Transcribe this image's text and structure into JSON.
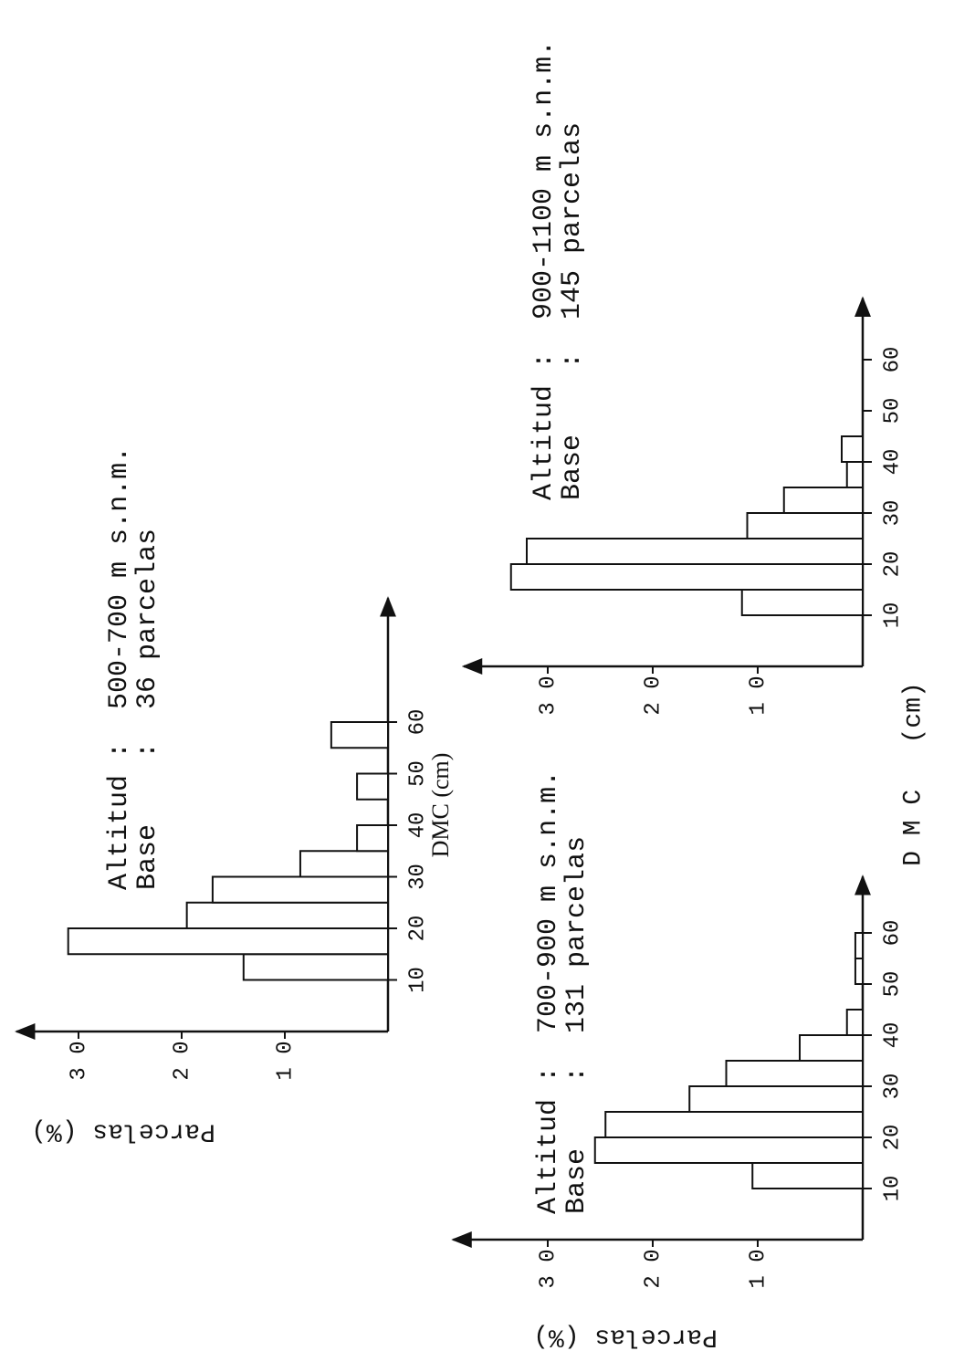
{
  "chart_data": [
    {
      "type": "histogram",
      "annotations": [
        "Altitud :  500-700 m s.n.m.",
        "Base    :  36 parcelas"
      ],
      "ylabel": "Parcelas (%)",
      "xlabel": "DMC (cm)",
      "bins": [
        10,
        15,
        20,
        25,
        30,
        35,
        40,
        45,
        50,
        55,
        60
      ],
      "values": [
        14,
        31,
        19.5,
        17,
        8.5,
        3,
        0,
        3,
        0,
        5.5
      ],
      "xlim": [
        0,
        84
      ],
      "xticks": [
        10,
        20,
        30,
        40,
        50,
        60
      ],
      "ylim": [
        0,
        36
      ],
      "yticks": [
        {
          "value": 10,
          "label": "1 0"
        },
        {
          "value": 20,
          "label": "2 0"
        },
        {
          "value": 30,
          "label": "3 0"
        }
      ],
      "color": "#ffffff"
    },
    {
      "type": "histogram",
      "annotations": [
        "Altitud :  700-900 m s.n.m.",
        "Base    :  131 parcelas"
      ],
      "ylabel": "Parcelas (%)",
      "bins": [
        10,
        15,
        20,
        25,
        30,
        35,
        40,
        45,
        50,
        55,
        60
      ],
      "values": [
        10.5,
        25.5,
        24.5,
        16.5,
        13,
        6,
        1.5,
        0,
        0.7,
        0.7
      ],
      "xlim": [
        0,
        71
      ],
      "xticks": [
        10,
        20,
        30,
        40,
        50,
        60
      ],
      "ylim": [
        0,
        39
      ],
      "yticks": [
        {
          "value": 10,
          "label": "1 0"
        },
        {
          "value": 20,
          "label": "2 0"
        },
        {
          "value": 30,
          "label": "3 0"
        }
      ],
      "color": "#ffffff"
    },
    {
      "type": "histogram",
      "annotations": [
        "Altitud :  900-1100 m s.n.m.",
        "Base    :  145 parcelas"
      ],
      "xlabel": "D M C   (cm)",
      "bins": [
        10,
        15,
        20,
        25,
        30,
        35,
        40,
        45
      ],
      "values": [
        11.5,
        33.5,
        32,
        11,
        7.5,
        1.5,
        2
      ],
      "xlim": [
        0,
        72
      ],
      "xticks": [
        10,
        20,
        30,
        40,
        50,
        60
      ],
      "ylim": [
        0,
        38
      ],
      "yticks": [
        {
          "value": 10,
          "label": "1 0"
        },
        {
          "value": 20,
          "label": "2 0"
        },
        {
          "value": 30,
          "label": "3 0"
        }
      ],
      "color": "#ffffff"
    }
  ]
}
